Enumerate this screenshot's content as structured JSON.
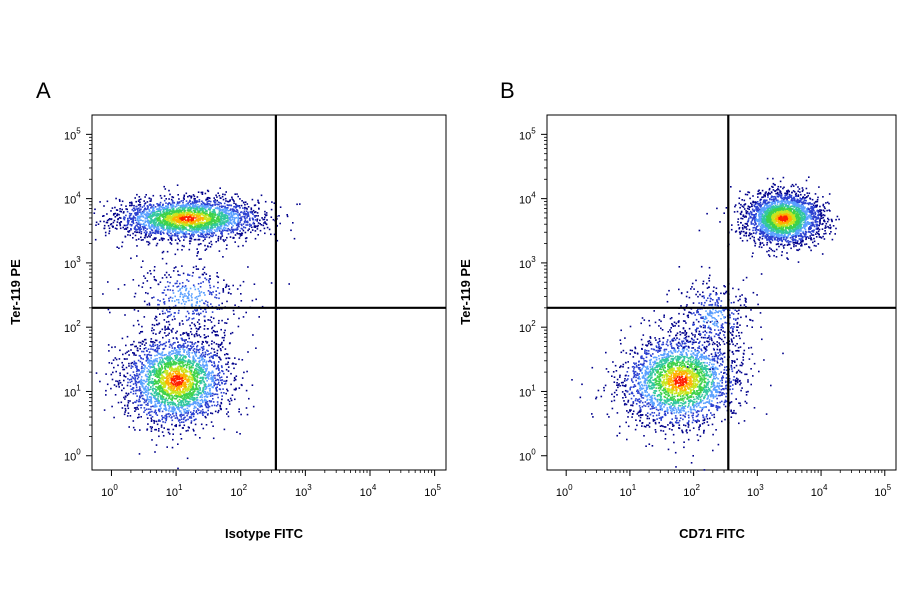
{
  "chart_data": [
    {
      "type": "scatter",
      "panel_label": "A",
      "xlabel": "Isotype FITC",
      "ylabel": "Ter-119 PE",
      "x_scale": "log",
      "y_scale": "log",
      "xlim": [
        0.5,
        150000
      ],
      "ylim": [
        0.6,
        200000
      ],
      "x_ticks": [
        1,
        10,
        100,
        1000,
        10000,
        100000
      ],
      "y_ticks": [
        1,
        10,
        100,
        1000,
        10000,
        100000
      ],
      "x_tick_labels": [
        {
          "base": "10",
          "exp": "0"
        },
        {
          "base": "10",
          "exp": "1"
        },
        {
          "base": "10",
          "exp": "2"
        },
        {
          "base": "10",
          "exp": "3"
        },
        {
          "base": "10",
          "exp": "4"
        },
        {
          "base": "10",
          "exp": "5"
        }
      ],
      "y_tick_labels": [
        {
          "base": "10",
          "exp": "0"
        },
        {
          "base": "10",
          "exp": "1"
        },
        {
          "base": "10",
          "exp": "2"
        },
        {
          "base": "10",
          "exp": "3"
        },
        {
          "base": "10",
          "exp": "4"
        },
        {
          "base": "10",
          "exp": "5"
        }
      ],
      "gate": {
        "x": 350,
        "y": 200
      },
      "populations": [
        {
          "x_center": 15,
          "y_center": 5000,
          "x_spread_decades": 0.55,
          "y_spread_decades": 0.16,
          "density": "high"
        },
        {
          "x_center": 10,
          "y_center": 15,
          "x_spread_decades": 0.4,
          "y_spread_decades": 0.35,
          "density": "high"
        },
        {
          "x_center": 15,
          "y_center": 300,
          "x_spread_decades": 0.45,
          "y_spread_decades": 0.3,
          "density": "low"
        }
      ]
    },
    {
      "type": "scatter",
      "panel_label": "B",
      "xlabel": "CD71 FITC",
      "ylabel": "Ter-119 PE",
      "x_scale": "log",
      "y_scale": "log",
      "xlim": [
        0.5,
        150000
      ],
      "ylim": [
        0.6,
        200000
      ],
      "x_ticks": [
        1,
        10,
        100,
        1000,
        10000,
        100000
      ],
      "y_ticks": [
        1,
        10,
        100,
        1000,
        10000,
        100000
      ],
      "x_tick_labels": [
        {
          "base": "10",
          "exp": "0"
        },
        {
          "base": "10",
          "exp": "1"
        },
        {
          "base": "10",
          "exp": "2"
        },
        {
          "base": "10",
          "exp": "3"
        },
        {
          "base": "10",
          "exp": "4"
        },
        {
          "base": "10",
          "exp": "5"
        }
      ],
      "y_tick_labels": [
        {
          "base": "10",
          "exp": "0"
        },
        {
          "base": "10",
          "exp": "1"
        },
        {
          "base": "10",
          "exp": "2"
        },
        {
          "base": "10",
          "exp": "3"
        },
        {
          "base": "10",
          "exp": "4"
        },
        {
          "base": "10",
          "exp": "5"
        }
      ],
      "gate": {
        "x": 350,
        "y": 200
      },
      "populations": [
        {
          "x_center": 2500,
          "y_center": 5000,
          "x_spread_decades": 0.3,
          "y_spread_decades": 0.2,
          "density": "high"
        },
        {
          "x_center": 60,
          "y_center": 15,
          "x_spread_decades": 0.45,
          "y_spread_decades": 0.35,
          "density": "high"
        },
        {
          "x_center": 200,
          "y_center": 150,
          "x_spread_decades": 0.3,
          "y_spread_decades": 0.3,
          "density": "low"
        }
      ]
    }
  ],
  "density_colors": [
    "#00008b",
    "#2a3fd0",
    "#5aa0ff",
    "#33c7a0",
    "#3fd24a",
    "#c8e61e",
    "#ffb000",
    "#ff2000"
  ]
}
